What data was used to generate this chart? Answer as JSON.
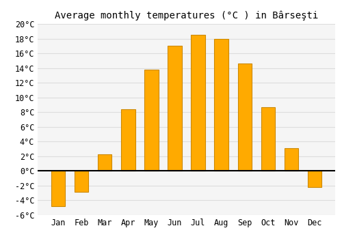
{
  "title": "Average monthly temperatures (°C ) in Bârseşti",
  "months": [
    "Jan",
    "Feb",
    "Mar",
    "Apr",
    "May",
    "Jun",
    "Jul",
    "Aug",
    "Sep",
    "Oct",
    "Nov",
    "Dec"
  ],
  "values": [
    -4.8,
    -2.8,
    2.3,
    8.4,
    13.8,
    17.0,
    18.5,
    18.0,
    14.6,
    8.7,
    3.1,
    -2.2
  ],
  "bar_color": "#FFAA00",
  "bar_edge_color": "#CC8800",
  "ylim": [
    -6,
    20
  ],
  "yticks": [
    -6,
    -4,
    -2,
    0,
    2,
    4,
    6,
    8,
    10,
    12,
    14,
    16,
    18,
    20
  ],
  "background_color": "#ffffff",
  "plot_bg_color": "#f5f5f5",
  "grid_color": "#dddddd",
  "title_fontsize": 10,
  "tick_fontsize": 8.5,
  "bar_width": 0.6
}
